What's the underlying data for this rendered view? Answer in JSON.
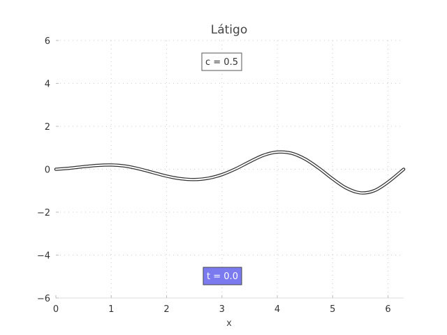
{
  "chart_data": {
    "type": "line",
    "title": "Látigo",
    "xlabel": "x",
    "ylabel": "",
    "xlim": [
      0,
      6.283
    ],
    "ylim": [
      -6,
      6
    ],
    "xticks": [
      0,
      1,
      2,
      3,
      4,
      5,
      6
    ],
    "yticks": [
      -6,
      -4,
      -2,
      0,
      2,
      4,
      6
    ],
    "xtick_labels": [
      "0",
      "1",
      "2",
      "3",
      "4",
      "5",
      "6"
    ],
    "ytick_labels": [
      "−6",
      "−4",
      "−2",
      "0",
      "2",
      "4",
      "6"
    ],
    "grid": true,
    "series": [
      {
        "x": [
          0,
          0.25,
          0.5,
          0.75,
          1.0,
          1.25,
          1.5,
          1.75,
          2.0,
          2.25,
          2.5,
          2.75,
          3.0,
          3.25,
          3.5,
          3.75,
          4.0,
          4.25,
          4.5,
          4.75,
          5.0,
          5.25,
          5.5,
          5.75,
          6.0,
          6.283
        ],
        "y": [
          0,
          0.05,
          0.12,
          0.18,
          0.2,
          0.15,
          0.02,
          -0.15,
          -0.32,
          -0.44,
          -0.48,
          -0.42,
          -0.25,
          0.02,
          0.35,
          0.65,
          0.8,
          0.75,
          0.48,
          0.05,
          -0.45,
          -0.88,
          -1.1,
          -1.0,
          -0.6,
          0.0
        ],
        "color": "#333333"
      }
    ],
    "annotations": {
      "c_label": "c = 0.5",
      "t_label": "t = 0.0"
    },
    "colors": {
      "t_box_fill": "#7b7bef",
      "t_box_text": "#ffffff",
      "c_box_fill": "#ffffff",
      "c_box_text": "#333333"
    }
  }
}
